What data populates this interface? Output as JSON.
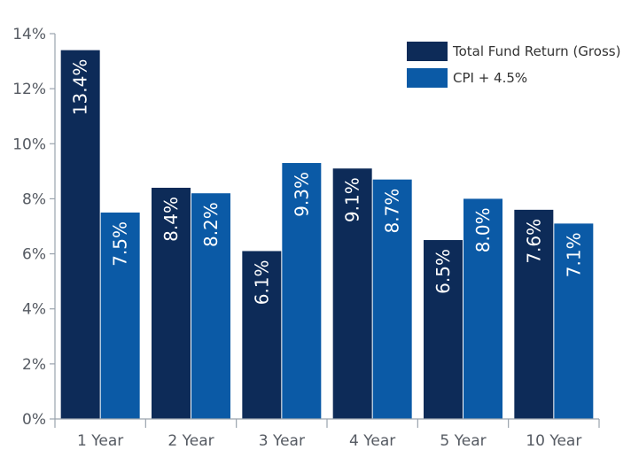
{
  "chart_data": {
    "type": "bar",
    "title": "",
    "xlabel": "",
    "ylabel": "",
    "categories": [
      "1 Year",
      "2 Year",
      "3 Year",
      "4 Year",
      "5 Year",
      "10 Year"
    ],
    "series": [
      {
        "name": "Total Fund Return (Gross)",
        "color": "#0d2b58",
        "values": [
          13.4,
          8.4,
          6.1,
          9.1,
          6.5,
          7.6
        ],
        "labels": [
          "13.4%",
          "8.4%",
          "6.1%",
          "9.1%",
          "6.5%",
          "7.6%"
        ]
      },
      {
        "name": "CPI + 4.5%",
        "color": "#0b5aa6",
        "values": [
          7.5,
          8.2,
          9.3,
          8.7,
          8.0,
          7.1
        ],
        "labels": [
          "7.5%",
          "8.2%",
          "9.3%",
          "8.7%",
          "8.0%",
          "7.1%"
        ]
      }
    ],
    "ylim": [
      0,
      14
    ],
    "yticks": [
      0,
      2,
      4,
      6,
      8,
      10,
      12,
      14
    ],
    "ytick_labels": [
      "0%",
      "2%",
      "4%",
      "6%",
      "8%",
      "10%",
      "12%",
      "14%"
    ],
    "grid": false,
    "legend_position": "top-right"
  }
}
